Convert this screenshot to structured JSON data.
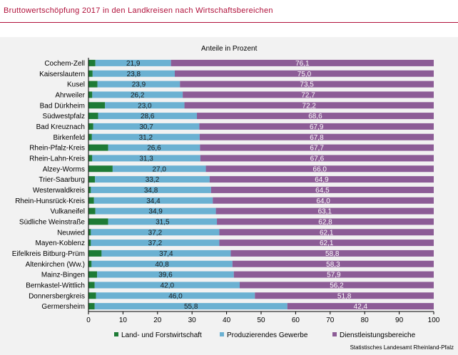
{
  "header": {
    "title": "Bruttowertschöpfung  2017 in den Landkreisen  nach Wirtschaftsbereichen"
  },
  "footer": {
    "source": "Statistisches Landesamt Rheinland-Pfalz"
  },
  "chart_data": {
    "type": "bar",
    "orientation": "horizontal",
    "stacked": true,
    "title": "",
    "subtitle": "Anteile in Prozent",
    "xlim": [
      0,
      100
    ],
    "xticks": [
      0,
      10,
      20,
      30,
      40,
      50,
      60,
      70,
      80,
      90,
      100
    ],
    "grid": false,
    "legend_position": "bottom",
    "categories": [
      "Cochem-Zell",
      "Kaiserslautern",
      "Kusel",
      "Ahrweiler",
      "Bad Dürkheim",
      "Südwestpfalz",
      "Bad Kreuznach",
      "Birkenfeld",
      "Rhein-Pfalz-Kreis",
      "Rhein-Lahn-Kreis",
      "Alzey-Worms",
      "Trier-Saarburg",
      "Westerwaldkreis",
      "Rhein-Hunsrück-Kreis",
      "Vulkaneifel",
      "Südliche Weinstraße",
      "Neuwied",
      "Mayen-Koblenz",
      "Eifelkreis Bitburg-Prüm",
      "Altenkirchen (Ww.)",
      "Mainz-Bingen",
      "Bernkastel-Wittlich",
      "Donnersbergkreis",
      "Germersheim"
    ],
    "series": [
      {
        "name": "Land- und Forstwirtschaft",
        "color": "#1e7b36",
        "values": [
          2.0,
          1.2,
          2.6,
          1.1,
          4.8,
          2.8,
          1.4,
          1.0,
          5.7,
          1.1,
          7.0,
          1.9,
          0.7,
          1.6,
          2.0,
          5.7,
          0.7,
          0.7,
          3.8,
          0.9,
          2.5,
          1.8,
          2.2,
          1.8
        ]
      },
      {
        "name": "Produzierendes Gewerbe",
        "color": "#6bb1d2",
        "values": [
          21.9,
          23.8,
          23.9,
          26.2,
          23.0,
          28.6,
          30.7,
          31.2,
          26.6,
          31.3,
          27.0,
          33.2,
          34.8,
          34.4,
          34.9,
          31.5,
          37.2,
          37.2,
          37.4,
          40.8,
          39.6,
          42.0,
          46.0,
          55.8
        ]
      },
      {
        "name": "Dienstleistungsbereiche",
        "color": "#8c5c96",
        "values": [
          76.1,
          75.0,
          73.5,
          72.7,
          72.2,
          68.6,
          67.9,
          67.8,
          67.7,
          67.6,
          66.0,
          64.9,
          64.5,
          64.0,
          63.1,
          62.8,
          62.1,
          62.1,
          58.8,
          58.3,
          57.9,
          56.2,
          51.8,
          42.4
        ]
      }
    ],
    "value_labels": {
      "Produzierendes Gewerbe": [
        "21,9",
        "23,8",
        "23,9",
        "26,2",
        "23,0",
        "28,6",
        "30,7",
        "31,2",
        "26,6",
        "31,3",
        "27,0",
        "33,2",
        "34,8",
        "34,4",
        "34,9",
        "31,5",
        "37,2",
        "37,2",
        "37,4",
        "40,8",
        "39,6",
        "42,0",
        "46,0",
        "55,8"
      ],
      "Dienstleistungsbereiche": [
        "76,1",
        "75,0",
        "73,5",
        "72,7",
        "72,2",
        "68,6",
        "67,9",
        "67,8",
        "67,7",
        "67,6",
        "66,0",
        "64,9",
        "64,5",
        "64,0",
        "63,1",
        "62,8",
        "62,1",
        "62,1",
        "58,8",
        "58,3",
        "57,9",
        "56,2",
        "51,8",
        "42,4"
      ]
    }
  }
}
